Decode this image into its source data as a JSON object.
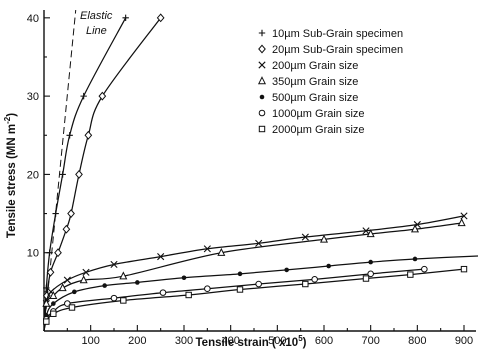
{
  "chart_data": {
    "type": "line",
    "title": "",
    "xlabel": "Tensile strain  ( x10",
    "xlabel_sup": "5",
    "xlabel_suffix": ")",
    "ylabel": "Tensile stress  (MN m",
    "ylabel_sup": "-2",
    "ylabel_suffix": ")",
    "xlim": [
      0,
      930
    ],
    "ylim": [
      0,
      41
    ],
    "x_ticks": [
      100,
      200,
      300,
      400,
      500,
      600,
      700,
      800,
      900
    ],
    "y_ticks": [
      10,
      20,
      30,
      40
    ],
    "x_minor_ticks": [
      50,
      150,
      250,
      350,
      450,
      550,
      650,
      750,
      850
    ],
    "y_minor_ticks": [
      5,
      15,
      25,
      35
    ],
    "grid": false,
    "legend_position": "top-right",
    "annotations": [
      {
        "text": "Elastic",
        "attach_to": "elastic_line"
      },
      {
        "text": "Line",
        "attach_to": "elastic_line"
      }
    ],
    "elastic_line": {
      "x": [
        0,
        68
      ],
      "y": [
        0,
        41
      ]
    },
    "series": [
      {
        "name": "10µm Sub-Grain specimen",
        "marker": "plus",
        "x": [
          0,
          5,
          12,
          25,
          40,
          55,
          85,
          175
        ],
        "y": [
          0,
          5.5,
          10,
          15,
          20,
          25,
          30,
          40
        ]
      },
      {
        "name": "20µm Sub-Grain specimen",
        "marker": "diamond",
        "x": [
          0,
          6,
          14,
          30,
          48,
          58,
          75,
          95,
          125,
          250
        ],
        "y": [
          0,
          4.5,
          7.5,
          10,
          13,
          15,
          20,
          25,
          30,
          40
        ]
      },
      {
        "name": "200µm Grain size",
        "marker": "x",
        "x": [
          0,
          5,
          15,
          50,
          90,
          150,
          250,
          350,
          460,
          560,
          690,
          800,
          900
        ],
        "y": [
          0,
          3.5,
          5,
          6.5,
          7.5,
          8.5,
          9.5,
          10.5,
          11.2,
          12,
          12.8,
          13.6,
          14.7
        ]
      },
      {
        "name": "350µm Grain size",
        "marker": "triangle",
        "x": [
          0,
          5,
          20,
          40,
          85,
          170,
          380,
          600,
          700,
          795,
          895
        ],
        "y": [
          0,
          3.5,
          4.5,
          5.5,
          6.5,
          7,
          10,
          11.7,
          12.4,
          13,
          13.8
        ]
      },
      {
        "name": "500µm Grain size",
        "marker": "dot",
        "x": [
          0,
          5,
          20,
          65,
          130,
          200,
          300,
          420,
          520,
          610,
          700,
          795,
          935
        ],
        "y": [
          0,
          2,
          3.5,
          5,
          5.8,
          6.2,
          6.8,
          7.3,
          7.8,
          8.3,
          8.8,
          9.2,
          9.6
        ]
      },
      {
        "name": "1000µm Grain size",
        "marker": "circle",
        "x": [
          0,
          5,
          20,
          50,
          150,
          255,
          350,
          460,
          580,
          700,
          815
        ],
        "y": [
          0,
          1.5,
          2.5,
          3.5,
          4.2,
          4.9,
          5.4,
          6,
          6.6,
          7.3,
          7.9
        ]
      },
      {
        "name": "2000µm Grain size",
        "marker": "square",
        "x": [
          0,
          5,
          20,
          60,
          170,
          310,
          420,
          560,
          690,
          785,
          900
        ],
        "y": [
          0,
          1.2,
          2.2,
          3,
          3.9,
          4.6,
          5.3,
          6,
          6.7,
          7.2,
          7.9
        ]
      }
    ]
  }
}
